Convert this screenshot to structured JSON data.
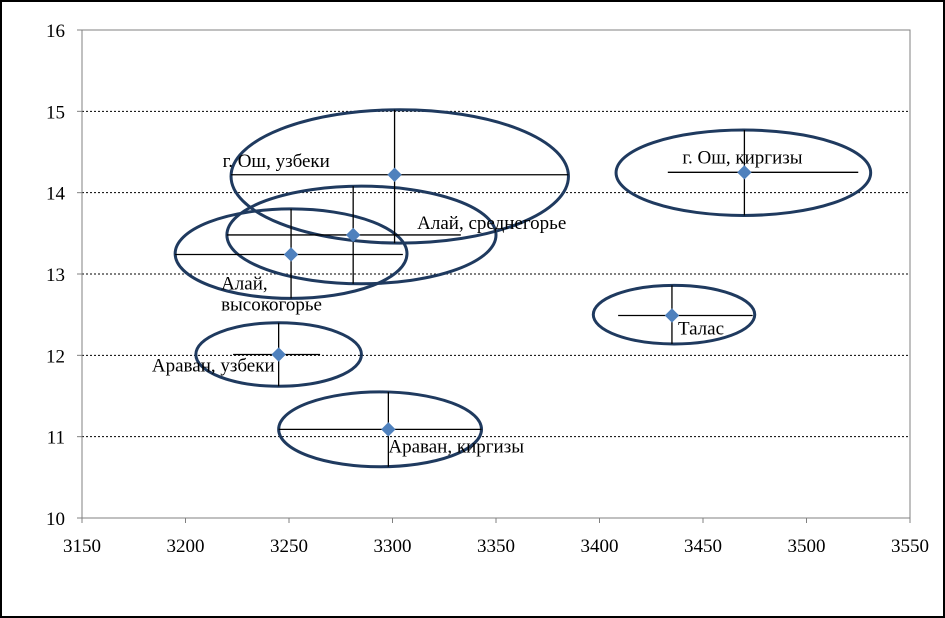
{
  "chart_data": {
    "type": "scatter",
    "title": "",
    "xlabel": "",
    "ylabel": "",
    "xlim": [
      3150,
      3550
    ],
    "ylim": [
      10,
      16
    ],
    "x_ticks": [
      3150,
      3200,
      3250,
      3300,
      3350,
      3400,
      3450,
      3500,
      3550
    ],
    "y_ticks": [
      10,
      11,
      12,
      13,
      14,
      15,
      16
    ],
    "grid": "horizontal-dashed",
    "marker_color": "#4F81BD",
    "ellipse_color": "#1F3A5F",
    "points": [
      {
        "label": "г. Ош, узбеки",
        "x": 3301,
        "y": 14.22,
        "x_err": [
          3222,
          3385
        ],
        "y_err": [
          13.38,
          15.02
        ],
        "ell_x": [
          3222,
          3385
        ],
        "ell_y": [
          13.38,
          15.02
        ]
      },
      {
        "label": "г. Ош, киргизы",
        "x": 3470,
        "y": 14.25,
        "x_err": [
          3433,
          3525
        ],
        "y_err": [
          13.72,
          14.77
        ],
        "ell_x": [
          3408,
          3531
        ],
        "ell_y": [
          13.72,
          14.77
        ]
      },
      {
        "label": "Алай, среднегорье",
        "x": 3281,
        "y": 13.48,
        "x_err": [
          3220,
          3333
        ],
        "y_err": [
          12.88,
          14.08
        ],
        "ell_x": [
          3220,
          3350
        ],
        "ell_y": [
          12.88,
          14.08
        ]
      },
      {
        "label": "Алай,\nвысокогорье",
        "x": 3251,
        "y": 13.24,
        "x_err": [
          3195,
          3305
        ],
        "y_err": [
          12.7,
          13.8
        ],
        "ell_x": [
          3195,
          3307
        ],
        "ell_y": [
          12.7,
          13.8
        ]
      },
      {
        "label": "Талас",
        "x": 3435,
        "y": 12.49,
        "x_err": [
          3409,
          3474
        ],
        "y_err": [
          12.14,
          12.86
        ],
        "ell_x": [
          3397,
          3475
        ],
        "ell_y": [
          12.14,
          12.86
        ]
      },
      {
        "label": "Араван, узбеки",
        "x": 3245,
        "y": 12.01,
        "x_err": [
          3223,
          3265
        ],
        "y_err": [
          11.62,
          12.4
        ],
        "ell_x": [
          3205,
          3285
        ],
        "ell_y": [
          11.62,
          12.4
        ]
      },
      {
        "label": "Араван, киргизы",
        "x": 3298,
        "y": 11.09,
        "x_err": [
          3245,
          3343
        ],
        "y_err": [
          10.63,
          11.55
        ],
        "ell_x": [
          3245,
          3343
        ],
        "ell_y": [
          10.63,
          11.55
        ]
      }
    ]
  }
}
